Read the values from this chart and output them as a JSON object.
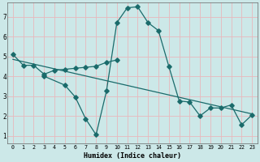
{
  "xlabel": "Humidex (Indice chaleur)",
  "background_color": "#cce8e8",
  "grid_color": "#e8b8bc",
  "line_color": "#1a6b6b",
  "xlim": [
    -0.5,
    23.5
  ],
  "ylim": [
    0.6,
    7.7
  ],
  "xticks": [
    0,
    1,
    2,
    3,
    4,
    5,
    6,
    7,
    8,
    9,
    10,
    11,
    12,
    13,
    14,
    15,
    16,
    17,
    18,
    19,
    20,
    21,
    22,
    23
  ],
  "yticks": [
    1,
    2,
    3,
    4,
    5,
    6,
    7
  ],
  "line1_x": [
    0,
    1,
    2,
    3,
    4,
    5,
    6,
    7,
    8,
    9,
    10
  ],
  "line1_y": [
    5.1,
    4.55,
    4.55,
    4.1,
    4.3,
    4.35,
    4.4,
    4.45,
    4.5,
    4.7,
    4.82
  ],
  "line2_x": [
    3,
    5,
    6,
    7,
    8,
    9,
    10,
    11,
    12,
    13,
    14,
    15,
    16,
    17,
    18,
    19,
    20,
    21,
    22,
    23
  ],
  "line2_y": [
    4.0,
    3.55,
    2.95,
    1.85,
    1.05,
    3.25,
    6.7,
    7.45,
    7.5,
    6.7,
    6.3,
    4.5,
    2.75,
    2.7,
    2.0,
    2.4,
    2.4,
    2.55,
    1.55,
    2.05
  ],
  "line3_x": [
    0,
    23
  ],
  "line3_y": [
    4.85,
    2.1
  ]
}
